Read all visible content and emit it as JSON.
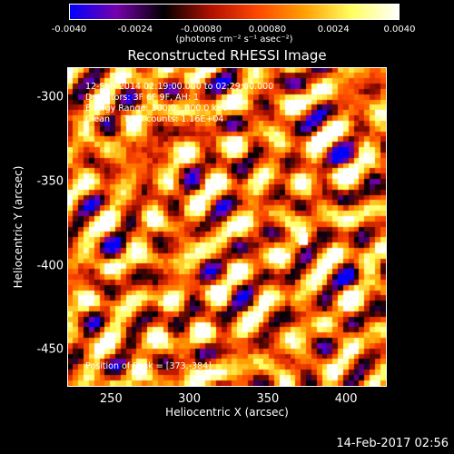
{
  "chart_data": {
    "type": "heatmap",
    "title": "Reconstructed RHESSI Image",
    "xlabel": "Heliocentric X (arcsec)",
    "ylabel": "Heliocentric Y (arcsec)",
    "xlim": [
      222,
      426
    ],
    "ylim": [
      -472,
      -282
    ],
    "x_ticks": [
      "250",
      "300",
      "350",
      "400"
    ],
    "x_tick_values": [
      250,
      300,
      350,
      400
    ],
    "y_ticks": [
      "-300",
      "-350",
      "-400",
      "-450"
    ],
    "y_tick_values": [
      -300,
      -350,
      -400,
      -450
    ],
    "colorbar": {
      "min": -0.004,
      "max": 0.004,
      "tick_labels": [
        "-0.0040",
        "-0.0024",
        "-0.00080",
        "0.00080",
        "0.0024",
        "0.0040"
      ],
      "tick_values": [
        -0.004,
        -0.0024,
        -0.0008,
        0.0008,
        0.0024,
        0.004
      ],
      "units": "(photons cm⁻² s⁻¹ asec⁻²)",
      "colormap": [
        "#0000ff",
        "#7700aa",
        "#000000",
        "#b01000",
        "#ff4800",
        "#ffa000",
        "#ffff60",
        "#ffffff"
      ]
    },
    "annotations": {
      "time": "12-Sep-2014 02:19:00.000 to 02:29:00.000",
      "detectors": "Detectors: 3F 6F 9F, AH: 1",
      "energy": "Energy Range: 300.0 - 800.0 keV",
      "method": "Clean     Total counts: 1.16E+04",
      "peak": "Position of Peak = [373,-384]"
    },
    "peak": [
      373,
      -384
    ]
  },
  "footer": {
    "timestamp": "14-Feb-2017 02:56"
  }
}
